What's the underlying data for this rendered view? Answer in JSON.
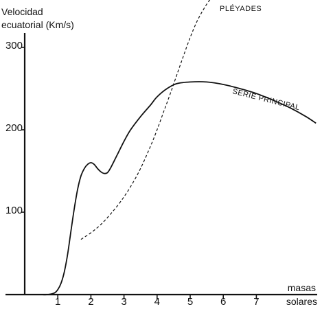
{
  "chart_data": {
    "type": "line",
    "ylabel_line1": "Velocidad",
    "ylabel_line2": "ecuatorial (Km/s)",
    "xlabel_line1": "masas",
    "xlabel_line2": "solares",
    "x_ticks": [
      1,
      2,
      3,
      4,
      5,
      6,
      7
    ],
    "y_ticks": [
      100,
      200,
      300
    ],
    "xlim": [
      0,
      9
    ],
    "ylim": [
      0,
      330
    ],
    "grid": false,
    "series": [
      {
        "name": "SERIE PRINCIPAL",
        "style": "solid",
        "x": [
          0.5,
          0.7,
          0.9,
          1.0,
          1.1,
          1.2,
          1.3,
          1.4,
          1.5,
          1.6,
          1.7,
          1.8,
          1.9,
          2.0,
          2.1,
          2.2,
          2.3,
          2.4,
          2.5,
          2.6,
          2.8,
          3.0,
          3.2,
          3.5,
          3.8,
          4.0,
          4.3,
          4.6,
          5.0,
          5.5,
          6.0,
          6.5,
          7.0,
          7.5,
          8.0,
          8.5,
          8.8
        ],
        "y": [
          0,
          0,
          2,
          6,
          14,
          28,
          50,
          78,
          105,
          128,
          144,
          153,
          158,
          160,
          158,
          153,
          149,
          147,
          148,
          154,
          170,
          186,
          200,
          216,
          230,
          240,
          250,
          256,
          258,
          258,
          255,
          250,
          244,
          236,
          227,
          216,
          208
        ]
      },
      {
        "name": "PLÉYADES",
        "style": "dashed",
        "x": [
          1.7,
          2.0,
          2.3,
          2.6,
          2.9,
          3.2,
          3.5,
          3.8,
          4.0,
          4.2,
          4.4,
          4.6,
          4.8,
          5.0,
          5.2,
          5.4,
          5.6,
          5.8,
          6.0
        ],
        "y": [
          67,
          75,
          85,
          98,
          113,
          131,
          153,
          180,
          200,
          222,
          244,
          267,
          290,
          312,
          331,
          346,
          358,
          366,
          370
        ]
      }
    ],
    "annotations": [
      "PLÉYADES",
      "SERIE PRINCIPAL"
    ]
  }
}
